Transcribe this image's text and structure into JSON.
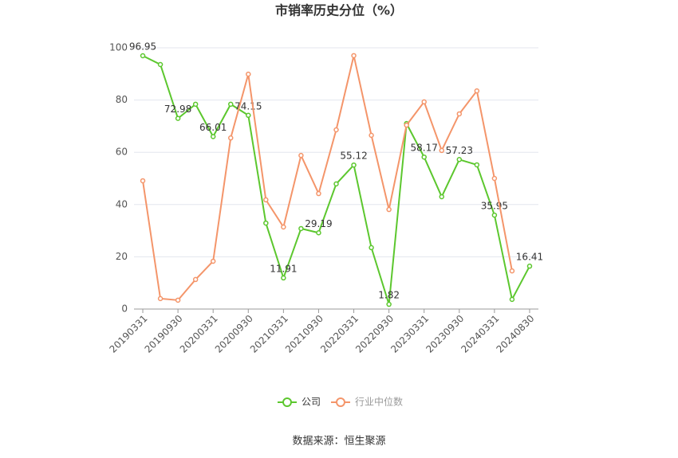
{
  "chart_data": {
    "type": "line",
    "title": "市销率历史分位（%）",
    "source": "数据来源：恒生聚源",
    "categories": [
      "20190331",
      null,
      "20190930",
      null,
      "20200331",
      null,
      "20200930",
      null,
      "20210331",
      null,
      "20210930",
      null,
      "20220331",
      null,
      "20220930",
      null,
      "20230331",
      null,
      "20230930",
      null,
      "20240331",
      null,
      "20240830"
    ],
    "series": [
      {
        "name": "公司",
        "color": "#5cc72e",
        "values": [
          96.95,
          93.6,
          72.98,
          78.4,
          66.01,
          78.4,
          74.15,
          32.9,
          11.91,
          30.8,
          29.19,
          47.9,
          55.12,
          23.5,
          1.82,
          71.0,
          58.17,
          43.0,
          57.23,
          55.2,
          35.95,
          3.7,
          16.41
        ],
        "value_labels": [
          "96.95",
          null,
          "72.98",
          null,
          "66.01",
          null,
          "74.15",
          null,
          "11.91",
          null,
          "29.19",
          null,
          "55.12",
          null,
          "1.82",
          null,
          "58.17",
          null,
          "57.23",
          null,
          "35.95",
          null,
          "16.41"
        ]
      },
      {
        "name": "行业中位数",
        "color": "#f4956a",
        "values": [
          49.1,
          4.0,
          3.4,
          11.3,
          18.3,
          65.5,
          89.9,
          41.8,
          31.4,
          58.8,
          44.2,
          68.6,
          97.0,
          66.5,
          38.1,
          70.4,
          79.3,
          60.7,
          74.7,
          83.5,
          50.0,
          14.6,
          null
        ]
      }
    ],
    "ylim": [
      0,
      100
    ],
    "yticks": [
      0,
      20,
      40,
      60,
      80,
      100
    ],
    "grid": true,
    "legend": "bottom"
  }
}
